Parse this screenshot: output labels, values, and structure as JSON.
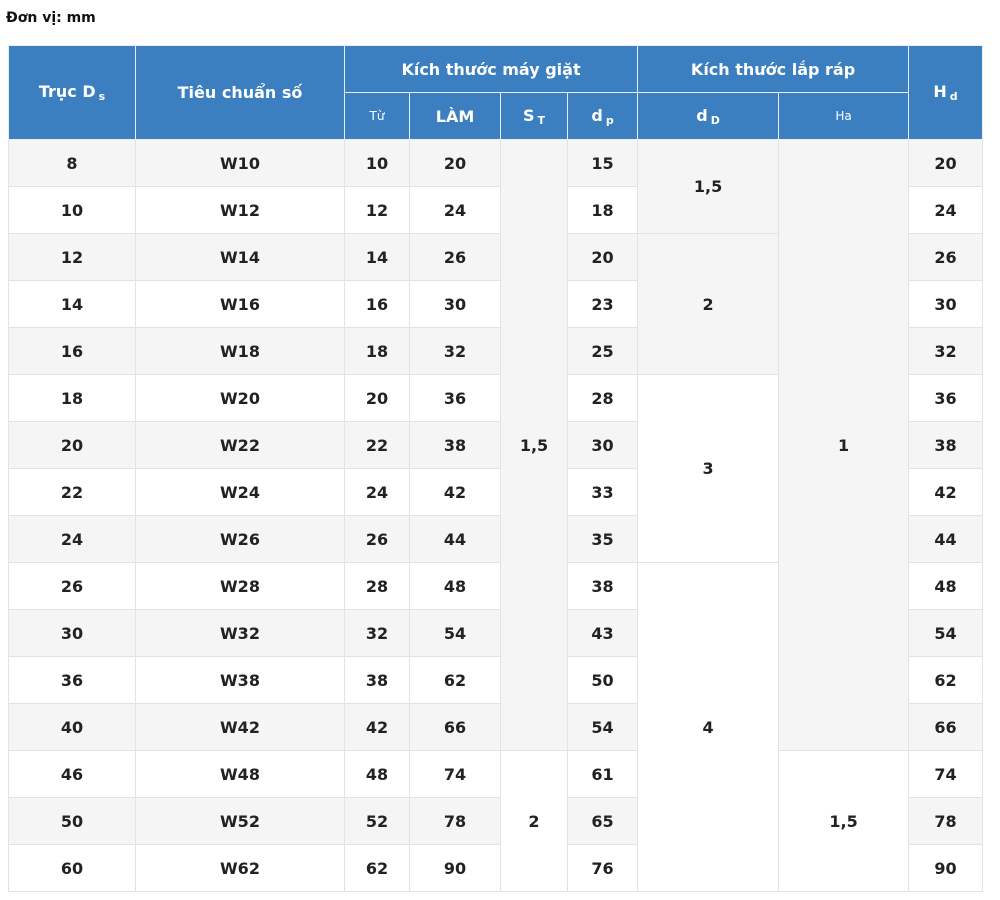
{
  "unit": "Đơn vị: mm",
  "table": {
    "header": {
      "shaft": {
        "text": "Trục D",
        "sub": "s"
      },
      "standard": "Tiêu chuẩn số",
      "washer_group": "Kích thước máy giặt",
      "assembly_group": "Kích thước lắp ráp",
      "hd": {
        "text": "H",
        "sub": "d"
      },
      "from": "Từ",
      "lam": "LÀM",
      "st": {
        "text": "S",
        "sub": "T"
      },
      "dp": {
        "text": "d",
        "sub": "p"
      },
      "dD": {
        "text": "d",
        "sub": "D"
      },
      "ha": "Ha"
    },
    "rows": [
      [
        8,
        "W10",
        10,
        20,
        "1,5",
        15,
        "1,5",
        1,
        20
      ],
      [
        10,
        "W12",
        12,
        24,
        null,
        18,
        null,
        null,
        24
      ],
      [
        12,
        "W14",
        14,
        26,
        null,
        20,
        2,
        null,
        26
      ],
      [
        14,
        "W16",
        16,
        30,
        null,
        23,
        null,
        null,
        30
      ],
      [
        16,
        "W18",
        18,
        32,
        null,
        25,
        null,
        null,
        32
      ],
      [
        18,
        "W20",
        20,
        36,
        null,
        28,
        3,
        null,
        36
      ],
      [
        20,
        "W22",
        22,
        38,
        null,
        30,
        null,
        null,
        38
      ],
      [
        22,
        "W24",
        24,
        42,
        null,
        33,
        null,
        null,
        42
      ],
      [
        24,
        "W26",
        26,
        44,
        null,
        35,
        null,
        null,
        44
      ],
      [
        26,
        "W28",
        28,
        48,
        null,
        38,
        4,
        null,
        48
      ],
      [
        30,
        "W32",
        32,
        54,
        null,
        43,
        null,
        null,
        54
      ],
      [
        36,
        "W38",
        38,
        62,
        null,
        50,
        null,
        null,
        62
      ],
      [
        40,
        "W42",
        42,
        66,
        null,
        54,
        null,
        null,
        66
      ],
      [
        46,
        "W48",
        48,
        74,
        2,
        61,
        null,
        "1,5",
        74
      ],
      [
        50,
        "W52",
        52,
        78,
        null,
        65,
        null,
        null,
        78
      ],
      [
        60,
        "W62",
        62,
        90,
        null,
        76,
        null,
        null,
        90
      ]
    ]
  }
}
